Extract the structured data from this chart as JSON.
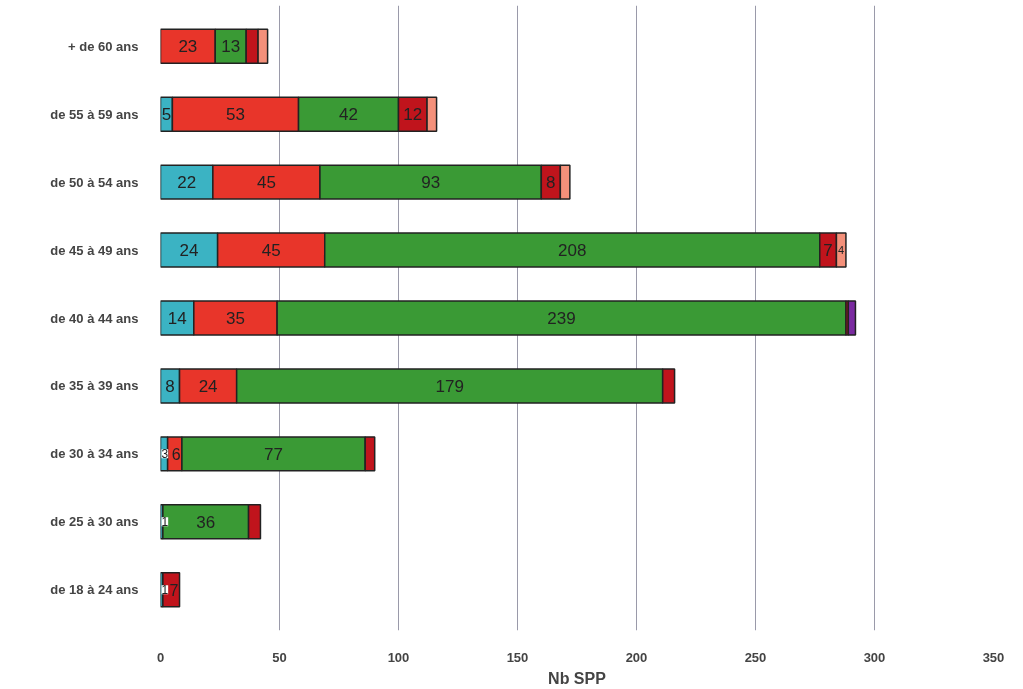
{
  "chart_data": {
    "type": "bar",
    "orientation": "horizontal",
    "stacked": true,
    "xlabel": "Nb SPP",
    "categories": [
      "+ de 60 ans",
      "de 55 à 59 ans",
      "de 50 à 54 ans",
      "de 45 à 49 ans",
      "de 40 à 44 ans",
      "de 35 à 39 ans",
      "de 30 à 34 ans",
      "de 25 à 30 ans",
      "de 18 à 24 ans"
    ],
    "xlim": [
      0,
      350
    ],
    "xticks": [
      0,
      50,
      100,
      150,
      200,
      250,
      300,
      350
    ],
    "grid": "x",
    "series": [
      {
        "color": "#3bb3c3",
        "values": [
          null,
          5,
          22,
          24,
          14,
          8,
          3,
          1,
          1
        ],
        "value_labels": [
          null,
          "5",
          "22",
          "24",
          "14",
          "8",
          "3",
          "1",
          "1"
        ]
      },
      {
        "color": "#e8352a",
        "values": [
          23,
          53,
          45,
          45,
          35,
          24,
          6,
          null,
          null
        ],
        "value_labels": [
          "23",
          "53",
          "45",
          "45",
          "35",
          "24",
          "6",
          null,
          null
        ]
      },
      {
        "color": "#3a9a35",
        "values": [
          13,
          42,
          93,
          208,
          239,
          179,
          77,
          36,
          null
        ],
        "value_labels": [
          "13",
          "42",
          "93",
          "208",
          "239",
          "179",
          "77",
          "36",
          null
        ]
      },
      {
        "color": "#c0141c",
        "values": [
          5,
          12,
          8,
          7,
          1,
          5,
          4,
          5,
          7
        ],
        "value_labels": [
          null,
          "12",
          "8",
          "7",
          null,
          null,
          null,
          null,
          "7"
        ]
      },
      {
        "color": "#f4907a",
        "values": [
          4,
          4,
          4,
          4,
          null,
          null,
          null,
          null,
          null
        ],
        "value_labels": [
          null,
          null,
          null,
          "4",
          null,
          null,
          null,
          null,
          null
        ]
      },
      {
        "color": "#7a2aa0",
        "values": [
          null,
          null,
          null,
          null,
          3,
          null,
          null,
          null,
          null
        ]
      }
    ]
  }
}
